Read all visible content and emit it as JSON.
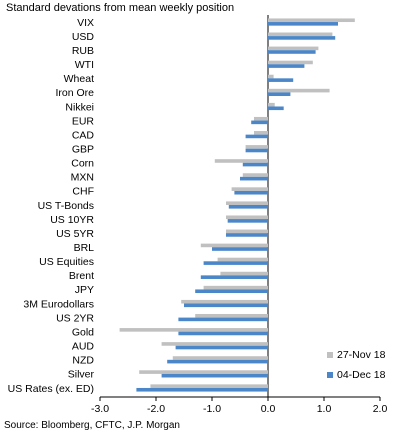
{
  "subtitle": "Standard devations from mean weekly position",
  "source": "Source: Bloomberg, CFTC, J.P. Morgan",
  "chart_data": {
    "type": "bar",
    "orientation": "horizontal",
    "title": "",
    "subtitle": "Standard devations from mean weekly position",
    "categories": [
      "VIX",
      "USD",
      "RUB",
      "WTI",
      "Wheat",
      "Iron Ore",
      "Nikkei",
      "EUR",
      "CAD",
      "GBP",
      "Corn",
      "MXN",
      "CHF",
      "US T-Bonds",
      "US 10YR",
      "US 5YR",
      "BRL",
      "US Equities",
      "Brent",
      "JPY",
      "3M Eurodollars",
      "US 2YR",
      "Gold",
      "AUD",
      "NZD",
      "Silver",
      "US Rates (ex. ED)"
    ],
    "series": [
      {
        "name": "27-Nov 18",
        "color": "#c0c0c0",
        "values": [
          1.55,
          1.15,
          0.9,
          0.8,
          0.1,
          1.1,
          0.12,
          -0.25,
          -0.25,
          -0.4,
          -0.95,
          -0.45,
          -0.65,
          -0.75,
          -0.75,
          -0.75,
          -1.2,
          -0.9,
          -0.85,
          -1.15,
          -1.55,
          -1.3,
          -2.65,
          -1.9,
          -1.7,
          -2.3,
          -2.1
        ]
      },
      {
        "name": "04-Dec 18",
        "color": "#4a86c8",
        "values": [
          1.25,
          1.2,
          0.85,
          0.65,
          0.45,
          0.4,
          0.28,
          -0.3,
          -0.4,
          -0.4,
          -0.45,
          -0.5,
          -0.6,
          -0.7,
          -0.72,
          -0.75,
          -1.0,
          -1.15,
          -1.2,
          -1.3,
          -1.5,
          -1.6,
          -1.6,
          -1.65,
          -1.8,
          -1.9,
          -2.35
        ]
      }
    ],
    "x_ticks": [
      "-3.0",
      "-2.0",
      "-1.0",
      "0.0",
      "1.0",
      "2.0"
    ],
    "xlim": [
      -3,
      2
    ],
    "legend_position": "bottom-right",
    "grid": false
  }
}
